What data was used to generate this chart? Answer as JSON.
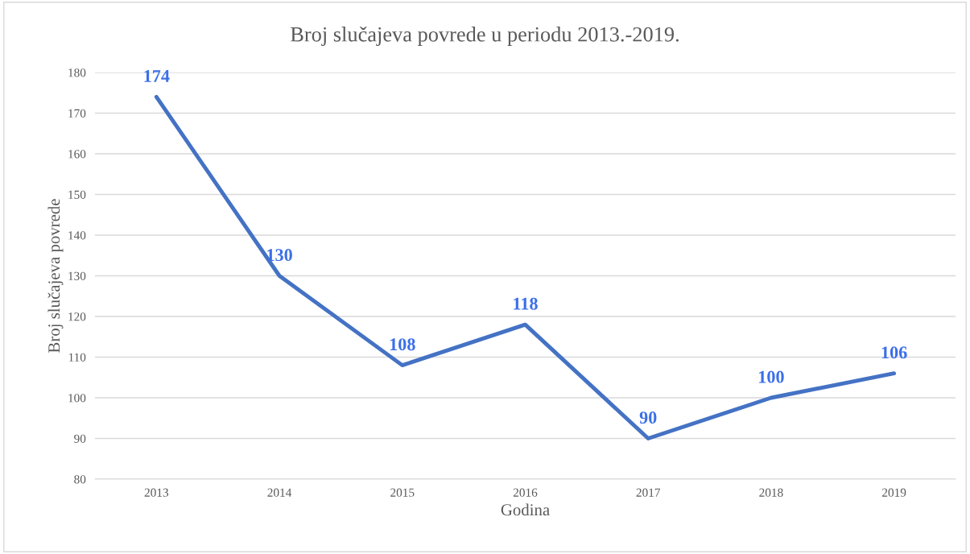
{
  "chart_data": {
    "type": "line",
    "title": "Broj slučajeva povrede u periodu 2013.-2019.",
    "xlabel": "Godina",
    "ylabel": "Broj slučajeva povrede",
    "categories": [
      "2013",
      "2014",
      "2015",
      "2016",
      "2017",
      "2018",
      "2019"
    ],
    "series": [
      {
        "color": "#4472c4",
        "values": [
          174,
          130,
          108,
          118,
          90,
          100,
          106
        ]
      }
    ],
    "ylim": [
      80,
      180
    ],
    "yticks": [
      80,
      90,
      100,
      110,
      120,
      130,
      140,
      150,
      160,
      170,
      180
    ],
    "grid": "y",
    "data_labels": true,
    "marker": "none",
    "line_style": "solid"
  }
}
